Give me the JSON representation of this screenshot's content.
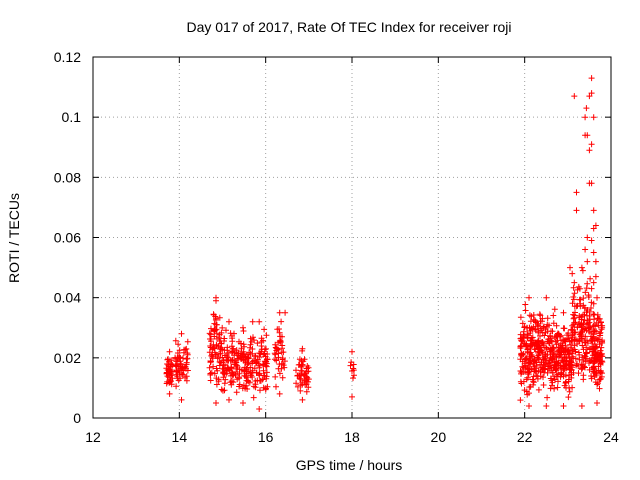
{
  "chart_data": {
    "type": "scatter",
    "title": "Day 017 of 2017, Rate Of TEC Index for receiver roji",
    "xlabel": "GPS time / hours",
    "ylabel": "ROTI / TECUs",
    "xlim": [
      12,
      24
    ],
    "ylim": [
      0,
      0.12
    ],
    "x_ticks": [
      12,
      14,
      16,
      18,
      20,
      22,
      24
    ],
    "x_tick_labels": [
      "12",
      "14",
      "16",
      "18",
      "20",
      "22",
      "24"
    ],
    "y_ticks": [
      0,
      0.02,
      0.04,
      0.06,
      0.08,
      0.1,
      0.12
    ],
    "y_tick_labels": [
      "0",
      "0.02",
      "0.04",
      "0.06",
      "0.08",
      "0.1",
      "0.12"
    ],
    "grid": true,
    "marker": "+",
    "color": "#ff0000",
    "clusters": [
      {
        "x": [
          13.7,
          13.85
        ],
        "y": [
          0.008,
          0.022
        ],
        "n": 40
      },
      {
        "x": [
          13.9,
          14.2
        ],
        "y": [
          0.006,
          0.028
        ],
        "n": 60
      },
      {
        "x": [
          14.7,
          15.0
        ],
        "y": [
          0.005,
          0.04
        ],
        "n": 80
      },
      {
        "x": [
          15.0,
          15.3
        ],
        "y": [
          0.006,
          0.032
        ],
        "n": 70
      },
      {
        "x": [
          15.3,
          15.65
        ],
        "y": [
          0.005,
          0.03
        ],
        "n": 80
      },
      {
        "x": [
          15.65,
          16.05
        ],
        "y": [
          0.003,
          0.032
        ],
        "n": 80
      },
      {
        "x": [
          16.2,
          16.45
        ],
        "y": [
          0.008,
          0.035
        ],
        "n": 40
      },
      {
        "x": [
          16.7,
          17.0
        ],
        "y": [
          0.006,
          0.023
        ],
        "n": 50
      },
      {
        "x": [
          17.95,
          18.05
        ],
        "y": [
          0.007,
          0.022
        ],
        "n": 8
      },
      {
        "x": [
          21.9,
          22.3
        ],
        "y": [
          0.004,
          0.04
        ],
        "n": 150
      },
      {
        "x": [
          22.3,
          22.7
        ],
        "y": [
          0.004,
          0.04
        ],
        "n": 150
      },
      {
        "x": [
          22.7,
          23.1
        ],
        "y": [
          0.004,
          0.035
        ],
        "n": 150
      },
      {
        "x": [
          23.1,
          23.55
        ],
        "y": [
          0.004,
          0.05
        ],
        "n": 150
      },
      {
        "x": [
          23.55,
          23.8
        ],
        "y": [
          0.005,
          0.04
        ],
        "n": 120
      }
    ],
    "points": [
      [
        23.15,
        0.107
      ],
      [
        23.4,
        0.1
      ],
      [
        23.43,
        0.103
      ],
      [
        23.5,
        0.107
      ],
      [
        23.55,
        0.113
      ],
      [
        23.55,
        0.108
      ],
      [
        23.6,
        0.1
      ],
      [
        23.45,
        0.094
      ],
      [
        23.55,
        0.091
      ],
      [
        23.5,
        0.089
      ],
      [
        23.4,
        0.094
      ],
      [
        23.5,
        0.078
      ],
      [
        23.55,
        0.078
      ],
      [
        23.2,
        0.075
      ],
      [
        23.2,
        0.069
      ],
      [
        23.6,
        0.069
      ],
      [
        23.6,
        0.063
      ],
      [
        23.65,
        0.064
      ],
      [
        23.55,
        0.059
      ],
      [
        23.45,
        0.06
      ],
      [
        23.6,
        0.055
      ],
      [
        23.65,
        0.052
      ],
      [
        23.4,
        0.056
      ],
      [
        23.45,
        0.052
      ],
      [
        23.65,
        0.047
      ],
      [
        23.6,
        0.045
      ],
      [
        23.55,
        0.043
      ],
      [
        23.35,
        0.049
      ],
      [
        23.15,
        0.045
      ],
      [
        23.05,
        0.05
      ],
      [
        23.1,
        0.048
      ],
      [
        23.6,
        0.038
      ],
      [
        16.45,
        0.035
      ],
      [
        14.85,
        0.039
      ],
      [
        15.7,
        0.032
      ]
    ]
  }
}
